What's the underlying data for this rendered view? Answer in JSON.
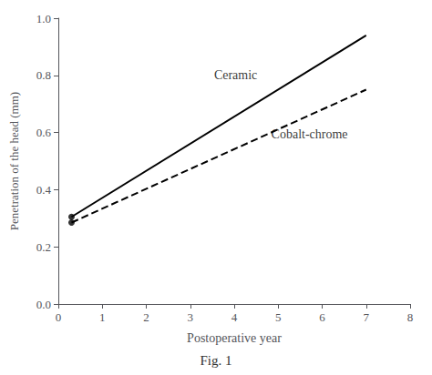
{
  "chart_data": {
    "type": "line",
    "color": "#000000",
    "xlabel": "Postoperative year",
    "ylabel": "Penetration of the head (mm)",
    "caption": "Fig. 1",
    "xlim": [
      0,
      8
    ],
    "ylim": [
      0.0,
      1.0
    ],
    "xticks": [
      0,
      1,
      2,
      3,
      4,
      5,
      6,
      7,
      8
    ],
    "yticks": [
      {
        "value": 0.0,
        "label": "0.0"
      },
      0.2,
      0.4,
      0.6,
      0.8,
      {
        "value": 1.0,
        "label": "1.0"
      }
    ],
    "grid": false,
    "series": [
      {
        "type": "line",
        "x": [
          0.3,
          7.0
        ],
        "values": [
          0.305,
          0.94
        ],
        "line_style": "solid",
        "marker": "none"
      },
      {
        "type": "line",
        "x": [
          0.3,
          7.0
        ],
        "values": [
          0.285,
          0.75
        ],
        "line_style": "dashed",
        "marker": "none"
      },
      {
        "type": "scatter",
        "x": [
          0.3
        ],
        "values": [
          0.305
        ],
        "marker": "circle"
      },
      {
        "type": "scatter",
        "x": [
          0.3
        ],
        "values": [
          0.285
        ],
        "marker": "circle"
      }
    ],
    "annotations": [
      {
        "text": "Ceramic",
        "x": 3.5,
        "y": 0.8
      },
      {
        "text": "Cobalt-chrome",
        "x": 4.8,
        "y": 0.595
      }
    ]
  }
}
